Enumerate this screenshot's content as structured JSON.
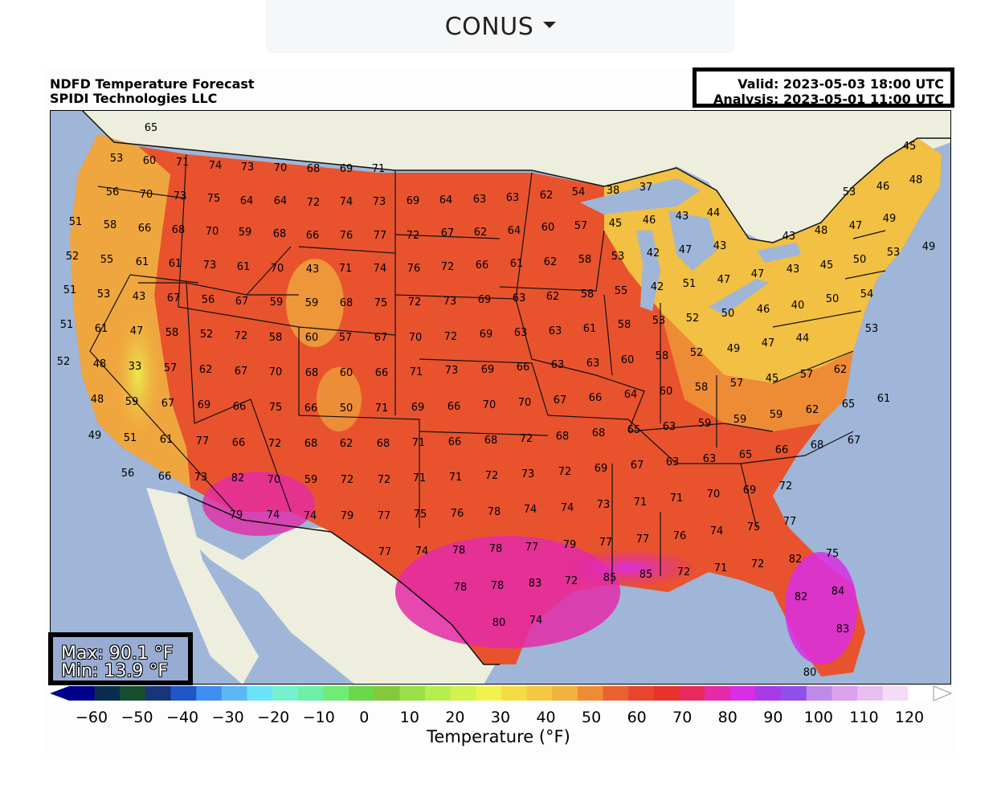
{
  "header": {
    "region_label": "CONUS",
    "region_options": [
      "CONUS"
    ]
  },
  "figure": {
    "title_line1": "NDFD Temperature Forecast",
    "title_line2": "SPIDI Technologies LLC",
    "valid": "Valid: 2023-05-03 18:00 UTC",
    "analysis": "Analysis: 2023-05-01 11:00 UTC",
    "max": "Max: 90.1 °F",
    "min": "Min: 13.9 °F"
  },
  "colors": {
    "ocean": "#9fb6d8",
    "land_outside": "#eeeedf",
    "state_border": "#111111"
  },
  "colorbar": {
    "label": "Temperature (°F)",
    "ticks": [
      "−60",
      "−50",
      "−40",
      "−30",
      "−20",
      "−10",
      "0",
      "10",
      "20",
      "30",
      "40",
      "50",
      "60",
      "70",
      "80",
      "90",
      "100",
      "110",
      "120"
    ],
    "colors": [
      "#00008b",
      "#0a2d4d",
      "#184d2e",
      "#16357a",
      "#1f56c8",
      "#3f8ff2",
      "#5cb8f5",
      "#6ae2f8",
      "#74f2cf",
      "#6cf0a8",
      "#70ec74",
      "#6ad84a",
      "#84c93a",
      "#9ae048",
      "#b4ef4e",
      "#d2f24e",
      "#f2f24e",
      "#f6dc44",
      "#f5c842",
      "#f2b23e",
      "#ee8c36",
      "#ea6230",
      "#e84430",
      "#e8322a",
      "#ea2a5e",
      "#e42aa8",
      "#d92ee4",
      "#a93ae8",
      "#9050e8",
      "#c08ae8",
      "#dca0ec",
      "#e8bdf0",
      "#f4dcf6",
      "#ffffff"
    ]
  },
  "map": {
    "stations": [
      [
        "65",
        "188",
        "158"
      ],
      [
        "53",
        "145",
        "196"
      ],
      [
        "60",
        "186",
        "199"
      ],
      [
        "71",
        "227",
        "201"
      ],
      [
        "74",
        "268",
        "205"
      ],
      [
        "73",
        "308",
        "207"
      ],
      [
        "70",
        "349",
        "208"
      ],
      [
        "68",
        "390",
        "209"
      ],
      [
        "69",
        "431",
        "209"
      ],
      [
        "71",
        "471",
        "209"
      ],
      [
        "56",
        "140",
        "238"
      ],
      [
        "70",
        "182",
        "241"
      ],
      [
        "73",
        "224",
        "243"
      ],
      [
        "75",
        "266",
        "246"
      ],
      [
        "64",
        "307",
        "249"
      ],
      [
        "64",
        "349",
        "249"
      ],
      [
        "72",
        "390",
        "251"
      ],
      [
        "74",
        "431",
        "250"
      ],
      [
        "73",
        "472",
        "250"
      ],
      [
        "69",
        "514",
        "249"
      ],
      [
        "64",
        "555",
        "248"
      ],
      [
        "63",
        "597",
        "247"
      ],
      [
        "63",
        "638",
        "245"
      ],
      [
        "62",
        "680",
        "242"
      ],
      [
        "54",
        "720",
        "238"
      ],
      [
        "38",
        "763",
        "236"
      ],
      [
        "37",
        "804",
        "232"
      ],
      [
        "46",
        "1099",
        "231"
      ],
      [
        "53",
        "1057",
        "238"
      ],
      [
        "48",
        "1140",
        "223"
      ],
      [
        "45",
        "1132",
        "181"
      ],
      [
        "51",
        "94",
        "275"
      ],
      [
        "58",
        "137",
        "279"
      ],
      [
        "66",
        "180",
        "283"
      ],
      [
        "68",
        "222",
        "285"
      ],
      [
        "70",
        "264",
        "287"
      ],
      [
        "59",
        "305",
        "288"
      ],
      [
        "68",
        "348",
        "290"
      ],
      [
        "66",
        "389",
        "292"
      ],
      [
        "76",
        "431",
        "292"
      ],
      [
        "77",
        "473",
        "292"
      ],
      [
        "72",
        "514",
        "292"
      ],
      [
        "67",
        "557",
        "289"
      ],
      [
        "62",
        "598",
        "288"
      ],
      [
        "64",
        "640",
        "286"
      ],
      [
        "60",
        "682",
        "282"
      ],
      [
        "57",
        "723",
        "280"
      ],
      [
        "45",
        "766",
        "277"
      ],
      [
        "46",
        "808",
        "273"
      ],
      [
        "43",
        "849",
        "268"
      ],
      [
        "44",
        "888",
        "264"
      ],
      [
        "43",
        "982",
        "293"
      ],
      [
        "48",
        "1022",
        "286"
      ],
      [
        "47",
        "1065",
        "280"
      ],
      [
        "49",
        "1107",
        "271"
      ],
      [
        "49",
        "1156",
        "306"
      ],
      [
        "50",
        "1070",
        "322"
      ],
      [
        "53",
        "1112",
        "313"
      ],
      [
        "52",
        "90",
        "318"
      ],
      [
        "55",
        "133",
        "322"
      ],
      [
        "61",
        "177",
        "325"
      ],
      [
        "61",
        "218",
        "327"
      ],
      [
        "73",
        "261",
        "329"
      ],
      [
        "61",
        "303",
        "331"
      ],
      [
        "70",
        "345",
        "333"
      ],
      [
        "43",
        "389",
        "334"
      ],
      [
        "71",
        "430",
        "333"
      ],
      [
        "74",
        "473",
        "333"
      ],
      [
        "76",
        "515",
        "333"
      ],
      [
        "72",
        "557",
        "331"
      ],
      [
        "66",
        "600",
        "329"
      ],
      [
        "61",
        "643",
        "327"
      ],
      [
        "62",
        "685",
        "325"
      ],
      [
        "58",
        "728",
        "322"
      ],
      [
        "53",
        "769",
        "318"
      ],
      [
        "42",
        "813",
        "314"
      ],
      [
        "47",
        "853",
        "310"
      ],
      [
        "43",
        "896",
        "305"
      ],
      [
        "43",
        "987",
        "334"
      ],
      [
        "45",
        "1029",
        "329"
      ],
      [
        "51",
        "87",
        "360"
      ],
      [
        "53",
        "129",
        "365"
      ],
      [
        "43",
        "173",
        "368"
      ],
      [
        "67",
        "216",
        "370"
      ],
      [
        "56",
        "259",
        "372"
      ],
      [
        "67",
        "301",
        "374"
      ],
      [
        "59",
        "344",
        "375"
      ],
      [
        "59",
        "388",
        "376"
      ],
      [
        "68",
        "431",
        "376"
      ],
      [
        "75",
        "474",
        "376"
      ],
      [
        "72",
        "516",
        "375"
      ],
      [
        "73",
        "560",
        "374"
      ],
      [
        "69",
        "603",
        "372"
      ],
      [
        "63",
        "646",
        "370"
      ],
      [
        "62",
        "688",
        "368"
      ],
      [
        "58",
        "731",
        "365"
      ],
      [
        "55",
        "773",
        "361"
      ],
      [
        "42",
        "818",
        "356"
      ],
      [
        "51",
        "858",
        "352"
      ],
      [
        "47",
        "901",
        "347"
      ],
      [
        "47",
        "943",
        "340"
      ],
      [
        "40",
        "993",
        "379"
      ],
      [
        "50",
        "1036",
        "371"
      ],
      [
        "54",
        "1079",
        "365"
      ],
      [
        "51",
        "83",
        "403"
      ],
      [
        "61",
        "126",
        "408"
      ],
      [
        "47",
        "170",
        "411"
      ],
      [
        "58",
        "214",
        "413"
      ],
      [
        "52",
        "257",
        "415"
      ],
      [
        "72",
        "300",
        "417"
      ],
      [
        "58",
        "343",
        "419"
      ],
      [
        "60",
        "388",
        "419"
      ],
      [
        "57",
        "430",
        "419"
      ],
      [
        "67",
        "474",
        "419"
      ],
      [
        "70",
        "517",
        "419"
      ],
      [
        "72",
        "561",
        "418"
      ],
      [
        "69",
        "605",
        "415"
      ],
      [
        "63",
        "648",
        "413"
      ],
      [
        "63",
        "691",
        "411"
      ],
      [
        "61",
        "734",
        "408"
      ],
      [
        "58",
        "777",
        "403"
      ],
      [
        "53",
        "820",
        "398"
      ],
      [
        "52",
        "862",
        "395"
      ],
      [
        "50",
        "906",
        "389"
      ],
      [
        "46",
        "950",
        "384"
      ],
      [
        "53",
        "1085",
        "408"
      ],
      [
        "52",
        "79",
        "449"
      ],
      [
        "48",
        "124",
        "452"
      ],
      [
        "33",
        "168",
        "455"
      ],
      [
        "57",
        "212",
        "457"
      ],
      [
        "62",
        "256",
        "459"
      ],
      [
        "67",
        "300",
        "461"
      ],
      [
        "70",
        "343",
        "462"
      ],
      [
        "68",
        "388",
        "463"
      ],
      [
        "60",
        "431",
        "463"
      ],
      [
        "66",
        "475",
        "463"
      ],
      [
        "71",
        "518",
        "462"
      ],
      [
        "73",
        "562",
        "460"
      ],
      [
        "69",
        "607",
        "459"
      ],
      [
        "66",
        "651",
        "456"
      ],
      [
        "63",
        "694",
        "453"
      ],
      [
        "63",
        "738",
        "451"
      ],
      [
        "60",
        "781",
        "447"
      ],
      [
        "58",
        "824",
        "442"
      ],
      [
        "52",
        "867",
        "438"
      ],
      [
        "49",
        "913",
        "433"
      ],
      [
        "47",
        "956",
        "426"
      ],
      [
        "44",
        "999",
        "420"
      ],
      [
        "62",
        "1046",
        "459"
      ],
      [
        "48",
        "121",
        "496"
      ],
      [
        "59",
        "164",
        "499"
      ],
      [
        "67",
        "209",
        "501"
      ],
      [
        "69",
        "254",
        "503"
      ],
      [
        "66",
        "298",
        "505"
      ],
      [
        "75",
        "343",
        "506"
      ],
      [
        "66",
        "387",
        "507"
      ],
      [
        "50",
        "431",
        "507"
      ],
      [
        "71",
        "475",
        "507"
      ],
      [
        "69",
        "520",
        "506"
      ],
      [
        "66",
        "565",
        "505"
      ],
      [
        "70",
        "609",
        "503"
      ],
      [
        "70",
        "653",
        "500"
      ],
      [
        "67",
        "697",
        "497"
      ],
      [
        "66",
        "741",
        "494"
      ],
      [
        "64",
        "785",
        "490"
      ],
      [
        "60",
        "829",
        "486"
      ],
      [
        "58",
        "873",
        "481"
      ],
      [
        "57",
        "917",
        "476"
      ],
      [
        "45",
        "961",
        "470"
      ],
      [
        "57",
        "1004",
        "465"
      ],
      [
        "65",
        "1056",
        "502"
      ],
      [
        "61",
        "1100",
        "495"
      ],
      [
        "49",
        "118",
        "541"
      ],
      [
        "51",
        "162",
        "544"
      ],
      [
        "61",
        "207",
        "546"
      ],
      [
        "77",
        "252",
        "548"
      ],
      [
        "66",
        "297",
        "550"
      ],
      [
        "72",
        "342",
        "551"
      ],
      [
        "68",
        "387",
        "551"
      ],
      [
        "62",
        "431",
        "551"
      ],
      [
        "68",
        "477",
        "551"
      ],
      [
        "71",
        "521",
        "550"
      ],
      [
        "66",
        "566",
        "549"
      ],
      [
        "68",
        "611",
        "547"
      ],
      [
        "72",
        "655",
        "545"
      ],
      [
        "68",
        "700",
        "542"
      ],
      [
        "68",
        "745",
        "538"
      ],
      [
        "65",
        "789",
        "534"
      ],
      [
        "63",
        "833",
        "530"
      ],
      [
        "59",
        "877",
        "526"
      ],
      [
        "59",
        "921",
        "521"
      ],
      [
        "59",
        "966",
        "515"
      ],
      [
        "62",
        "1011",
        "509"
      ],
      [
        "67",
        "1063",
        "547"
      ],
      [
        "56",
        "159",
        "588"
      ],
      [
        "66",
        "205",
        "592"
      ],
      [
        "73",
        "250",
        "593"
      ],
      [
        "82",
        "296",
        "594"
      ],
      [
        "70",
        "341",
        "596"
      ],
      [
        "59",
        "387",
        "596"
      ],
      [
        "72",
        "432",
        "596"
      ],
      [
        "72",
        "478",
        "596"
      ],
      [
        "71",
        "522",
        "594"
      ],
      [
        "71",
        "567",
        "593"
      ],
      [
        "72",
        "612",
        "591"
      ],
      [
        "73",
        "657",
        "589"
      ],
      [
        "72",
        "703",
        "586"
      ],
      [
        "69",
        "748",
        "582"
      ],
      [
        "67",
        "793",
        "578"
      ],
      [
        "63",
        "837",
        "574"
      ],
      [
        "63",
        "883",
        "570"
      ],
      [
        "65",
        "928",
        "565"
      ],
      [
        "66",
        "973",
        "559"
      ],
      [
        "68",
        "1017",
        "553"
      ],
      [
        "79",
        "294",
        "640"
      ],
      [
        "74",
        "340",
        "640"
      ],
      [
        "74",
        "386",
        "641"
      ],
      [
        "79",
        "432",
        "641"
      ],
      [
        "77",
        "478",
        "641"
      ],
      [
        "75",
        "523",
        "639"
      ],
      [
        "76",
        "569",
        "638"
      ],
      [
        "78",
        "615",
        "636"
      ],
      [
        "74",
        "660",
        "633"
      ],
      [
        "74",
        "706",
        "631"
      ],
      [
        "73",
        "751",
        "627"
      ],
      [
        "71",
        "797",
        "624"
      ],
      [
        "71",
        "842",
        "619"
      ],
      [
        "70",
        "888",
        "614"
      ],
      [
        "69",
        "933",
        "609"
      ],
      [
        "72",
        "978",
        "604"
      ],
      [
        "77",
        "479",
        "686"
      ],
      [
        "74",
        "525",
        "685"
      ],
      [
        "78",
        "571",
        "684"
      ],
      [
        "78",
        "617",
        "682"
      ],
      [
        "77",
        "662",
        "680"
      ],
      [
        "79",
        "709",
        "677"
      ],
      [
        "77",
        "754",
        "674"
      ],
      [
        "77",
        "800",
        "670"
      ],
      [
        "76",
        "846",
        "666"
      ],
      [
        "74",
        "892",
        "660"
      ],
      [
        "75",
        "938",
        "655"
      ],
      [
        "77",
        "983",
        "648"
      ],
      [
        "78",
        "573",
        "730"
      ],
      [
        "78",
        "619",
        "728"
      ],
      [
        "83",
        "666",
        "725"
      ],
      [
        "72",
        "711",
        "722"
      ],
      [
        "85",
        "759",
        "718"
      ],
      [
        "85",
        "804",
        "714"
      ],
      [
        "72",
        "851",
        "711"
      ],
      [
        "71",
        "897",
        "706"
      ],
      [
        "72",
        "943",
        "701"
      ],
      [
        "82",
        "990",
        "695"
      ],
      [
        "75",
        "1036",
        "688"
      ],
      [
        "80",
        "621",
        "774"
      ],
      [
        "74",
        "667",
        "771"
      ],
      [
        "82",
        "997",
        "742"
      ],
      [
        "84",
        "1043",
        "735"
      ],
      [
        "83",
        "1049",
        "782"
      ],
      [
        "80",
        "1008",
        "836"
      ]
    ]
  }
}
